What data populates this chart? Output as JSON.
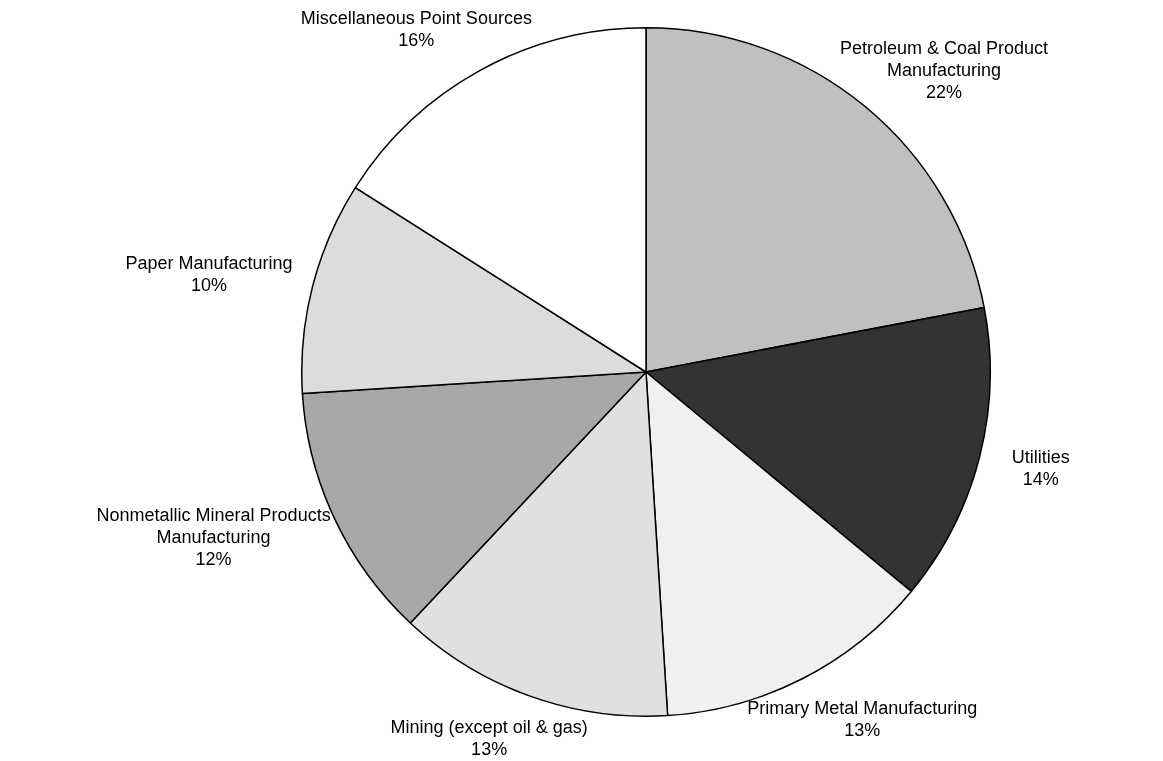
{
  "chart_data": {
    "type": "pie",
    "categories": [
      "Petroleum & Coal Product Manufacturing",
      "Utilities",
      "Primary Metal Manufacturing",
      "Mining (except oil & gas)",
      "Nonmetallic Mineral Products Manufacturing",
      "Paper Manufacturing",
      "Miscellaneous Point Sources"
    ],
    "values": [
      22,
      14,
      13,
      13,
      12,
      10,
      16
    ],
    "colors": [
      "#c0c0c0",
      "#333333",
      "#f0f0f0",
      "#e0e0e0",
      "#a8a8a8",
      "#dcdcdc",
      "#ffffff"
    ],
    "value_labels": [
      "22%",
      "14%",
      "13%",
      "13%",
      "12%",
      "10%",
      "16%"
    ],
    "legend": false
  }
}
